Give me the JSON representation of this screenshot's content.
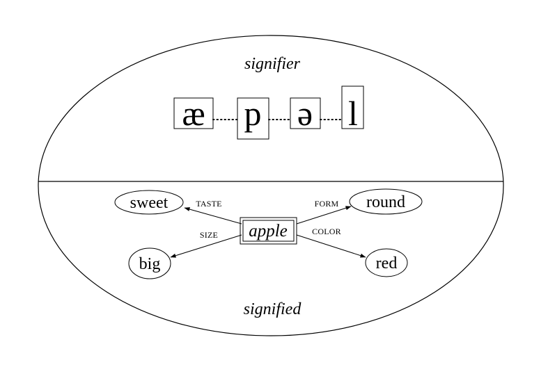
{
  "signifier": {
    "label": "signifier",
    "phonemes": [
      "æ",
      "p",
      "ə",
      "l"
    ],
    "connector": "dotted"
  },
  "signified": {
    "label": "signified",
    "center": "apple",
    "features": [
      {
        "relation": "TASTE",
        "value": "sweet"
      },
      {
        "relation": "FORM",
        "value": "round"
      },
      {
        "relation": "SIZE",
        "value": "big"
      },
      {
        "relation": "COLOR",
        "value": "red"
      }
    ]
  }
}
